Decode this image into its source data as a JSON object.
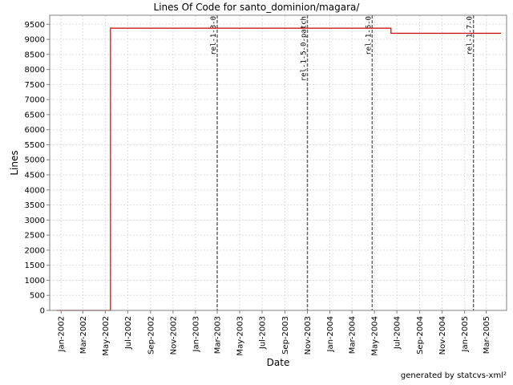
{
  "chart_data": {
    "type": "line",
    "title": "Lines Of Code for santo_dominion/magara/",
    "xlabel": "Date",
    "ylabel": "Lines",
    "ylim": [
      0,
      9800
    ],
    "xlim": [
      "2001-12-01",
      "2005-04-25"
    ],
    "y_ticks": [
      0,
      500,
      1000,
      1500,
      2000,
      2500,
      3000,
      3500,
      4000,
      4500,
      5000,
      5500,
      6000,
      6500,
      7000,
      7500,
      8000,
      8500,
      9000,
      9500
    ],
    "x_ticks": [
      {
        "date": "2002-01-01",
        "label": "Jan-2002"
      },
      {
        "date": "2002-03-01",
        "label": "Mar-2002"
      },
      {
        "date": "2002-05-01",
        "label": "May-2002"
      },
      {
        "date": "2002-07-01",
        "label": "Jul-2002"
      },
      {
        "date": "2002-09-01",
        "label": "Sep-2002"
      },
      {
        "date": "2002-11-01",
        "label": "Nov-2002"
      },
      {
        "date": "2003-01-01",
        "label": "Jan-2003"
      },
      {
        "date": "2003-03-01",
        "label": "Mar-2003"
      },
      {
        "date": "2003-05-01",
        "label": "May-2003"
      },
      {
        "date": "2003-07-01",
        "label": "Jul-2003"
      },
      {
        "date": "2003-09-01",
        "label": "Sep-2003"
      },
      {
        "date": "2003-11-01",
        "label": "Nov-2003"
      },
      {
        "date": "2004-01-01",
        "label": "Jan-2004"
      },
      {
        "date": "2004-03-01",
        "label": "Mar-2004"
      },
      {
        "date": "2004-05-01",
        "label": "May-2004"
      },
      {
        "date": "2004-07-01",
        "label": "Jul-2004"
      },
      {
        "date": "2004-09-01",
        "label": "Sep-2004"
      },
      {
        "date": "2004-11-01",
        "label": "Nov-2004"
      },
      {
        "date": "2005-01-01",
        "label": "Jan-2005"
      },
      {
        "date": "2005-03-01",
        "label": "Mar-2005"
      }
    ],
    "series": [
      {
        "step": true,
        "color": "#cc0000",
        "points": [
          {
            "x": "2001-12-20",
            "y": 0
          },
          {
            "x": "2002-05-15",
            "y": 0
          },
          {
            "x": "2002-05-15",
            "y": 9370
          },
          {
            "x": "2004-06-15",
            "y": 9370
          },
          {
            "x": "2004-06-15",
            "y": 9200
          },
          {
            "x": "2005-04-10",
            "y": 9200
          }
        ]
      }
    ],
    "markers": [
      {
        "date": "2003-03-01",
        "label": "rel-1-3-0"
      },
      {
        "date": "2003-11-01",
        "label": "rel-1-5-0-patch"
      },
      {
        "date": "2004-04-25",
        "label": "rel-1-6-0"
      },
      {
        "date": "2005-01-25",
        "label": "rel-1-7-0"
      }
    ],
    "grid": true,
    "colors": {
      "line": "#cc0000",
      "marker": "#666666",
      "grid": "#dddddd"
    }
  },
  "footer": "generated by statcvs-xml²"
}
